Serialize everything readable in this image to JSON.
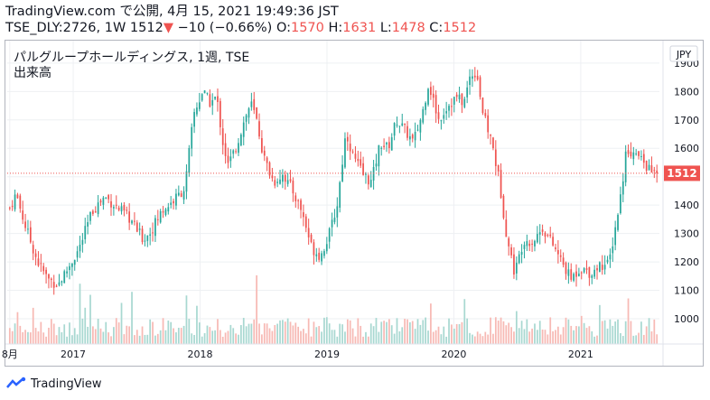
{
  "header": {
    "line1": "TradingView.com で公開, 4月 15, 2021 19:49:36 JST",
    "symbol": "TSE_DLY:2726, 1W",
    "last": "1512",
    "arrow": "▼",
    "change": "−10 (−0.66%)",
    "o_label": "O:",
    "o": "1570",
    "h_label": "H:",
    "h": "1631",
    "l_label": "L:",
    "l": "1478",
    "c_label": "C:",
    "c": "1512"
  },
  "legend": {
    "title": "パルグループホールディングス, 1週, TSE",
    "volume": "出来高"
  },
  "currency": "JPY",
  "price_tag": "1512",
  "footer": {
    "brand": "TradingView",
    "logo_icon": "tradingview-logo-icon"
  },
  "colors": {
    "up": "#26a69a",
    "down": "#ef5350",
    "up_vol": "#a8d8d1",
    "down_vol": "#f7b9b4"
  },
  "chart_data": {
    "type": "candlestick",
    "title": "パルグループホールディングス, 1週, TSE",
    "ylim": [
      930,
      1960
    ],
    "y_ticks": [
      1000,
      1100,
      1200,
      1300,
      1400,
      1500,
      1600,
      1700,
      1800,
      1900
    ],
    "x_ticks": [
      {
        "label": "8月",
        "t": 0.0
      },
      {
        "label": "2017",
        "t": 0.5
      },
      {
        "label": "2018",
        "t": 1.5
      },
      {
        "label": "2019",
        "t": 2.5
      },
      {
        "label": "2020",
        "t": 3.5
      },
      {
        "label": "2021",
        "t": 4.5
      }
    ],
    "last_price": 1512,
    "close_series": [
      [
        0.0,
        1390
      ],
      [
        0.05,
        1440
      ],
      [
        0.12,
        1330
      ],
      [
        0.22,
        1200
      ],
      [
        0.3,
        1140
      ],
      [
        0.38,
        1120
      ],
      [
        0.45,
        1170
      ],
      [
        0.55,
        1250
      ],
      [
        0.65,
        1380
      ],
      [
        0.75,
        1430
      ],
      [
        0.85,
        1390
      ],
      [
        0.95,
        1350
      ],
      [
        1.05,
        1280
      ],
      [
        1.1,
        1300
      ],
      [
        1.2,
        1380
      ],
      [
        1.3,
        1420
      ],
      [
        1.38,
        1460
      ],
      [
        1.45,
        1720
      ],
      [
        1.52,
        1800
      ],
      [
        1.58,
        1760
      ],
      [
        1.63,
        1780
      ],
      [
        1.68,
        1620
      ],
      [
        1.72,
        1540
      ],
      [
        1.78,
        1600
      ],
      [
        1.85,
        1700
      ],
      [
        1.9,
        1760
      ],
      [
        1.95,
        1690
      ],
      [
        2.0,
        1570
      ],
      [
        2.08,
        1480
      ],
      [
        2.15,
        1510
      ],
      [
        2.22,
        1460
      ],
      [
        2.3,
        1380
      ],
      [
        2.38,
        1250
      ],
      [
        2.45,
        1220
      ],
      [
        2.52,
        1300
      ],
      [
        2.58,
        1400
      ],
      [
        2.65,
        1660
      ],
      [
        2.7,
        1580
      ],
      [
        2.78,
        1510
      ],
      [
        2.85,
        1480
      ],
      [
        2.92,
        1620
      ],
      [
        2.98,
        1600
      ],
      [
        3.05,
        1700
      ],
      [
        3.12,
        1660
      ],
      [
        3.18,
        1620
      ],
      [
        3.25,
        1720
      ],
      [
        3.3,
        1830
      ],
      [
        3.38,
        1700
      ],
      [
        3.45,
        1750
      ],
      [
        3.52,
        1780
      ],
      [
        3.58,
        1760
      ],
      [
        3.63,
        1860
      ],
      [
        3.68,
        1870
      ],
      [
        3.73,
        1720
      ],
      [
        3.8,
        1620
      ],
      [
        3.86,
        1480
      ],
      [
        3.92,
        1280
      ],
      [
        3.98,
        1160
      ],
      [
        4.05,
        1280
      ],
      [
        4.12,
        1270
      ],
      [
        4.2,
        1320
      ],
      [
        4.28,
        1260
      ],
      [
        4.35,
        1200
      ],
      [
        4.42,
        1140
      ],
      [
        4.5,
        1180
      ],
      [
        4.58,
        1160
      ],
      [
        4.65,
        1190
      ],
      [
        4.72,
        1190
      ],
      [
        4.78,
        1340
      ],
      [
        4.82,
        1450
      ],
      [
        4.86,
        1600
      ],
      [
        4.92,
        1580
      ],
      [
        4.98,
        1560
      ],
      [
        5.05,
        1520
      ],
      [
        5.1,
        1512
      ]
    ],
    "volume_scale": [
      0,
      1
    ]
  }
}
